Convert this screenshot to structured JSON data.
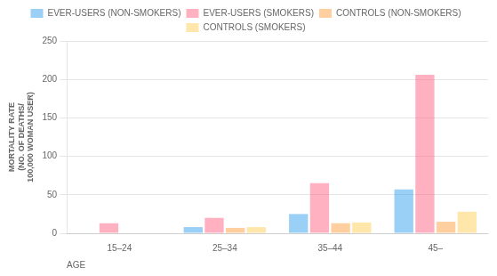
{
  "chart_data": {
    "type": "bar",
    "categories": [
      "15–24",
      "25–34",
      "35–44",
      "45–"
    ],
    "xlabel": "AGE",
    "ylabel": "MORTALITY RATE\n(NO. OF DEATHS/\n100,000 WOMAN USER)",
    "series": [
      {
        "name": "EVER-USERS (NON-SMOKERS)",
        "values": [
          0,
          8,
          25,
          57
        ]
      },
      {
        "name": "EVER-USERS (SMOKERS)",
        "values": [
          13,
          20,
          65,
          206
        ]
      },
      {
        "name": "CONTROLS (NON-SMOKERS)",
        "values": [
          0,
          7,
          13,
          15
        ]
      },
      {
        "name": "CONTROLS (SMOKERS)",
        "values": [
          0,
          8,
          14,
          28
        ]
      }
    ],
    "ylim": [
      0,
      250
    ],
    "yticks": [
      0,
      50,
      100,
      150,
      200,
      250
    ],
    "grid": true,
    "legend": "top"
  }
}
